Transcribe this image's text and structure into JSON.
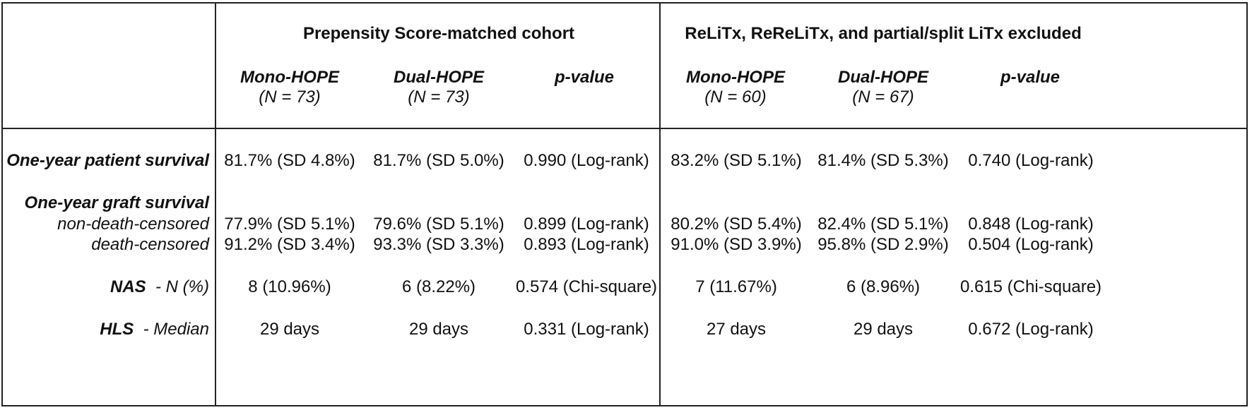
{
  "groups": {
    "psm": "Prepensity Score-matched cohort",
    "excl": "ReLiTx, ReReLiTx, and partial/split LiTx excluded"
  },
  "headers": {
    "psm": {
      "mono": {
        "label": "Mono-HOPE",
        "n": "(N = 73)"
      },
      "dual": {
        "label": "Dual-HOPE",
        "n": "(N = 73)"
      },
      "p": {
        "label": "p-value"
      }
    },
    "excl": {
      "mono": {
        "label": "Mono-HOPE",
        "n": "(N = 60)"
      },
      "dual": {
        "label": "Dual-HOPE",
        "n": "(N = 67)"
      },
      "p": {
        "label": "p-value"
      }
    }
  },
  "rows": {
    "patient_survival": {
      "label": "One-year patient survival",
      "psm_mono": "81.7% (SD 4.8%)",
      "psm_dual": "81.7% (SD 5.0%)",
      "psm_p": "0.990 (Log-rank)",
      "excl_mono": "83.2% (SD 5.1%)",
      "excl_dual": "81.4% (SD 5.3%)",
      "excl_p": "0.740 (Log-rank)"
    },
    "graft_survival": {
      "label": "One-year graft survival"
    },
    "non_death_censored": {
      "label": "non-death-censored",
      "psm_mono": "77.9% (SD 5.1%)",
      "psm_dual": "79.6% (SD 5.1%)",
      "psm_p": "0.899 (Log-rank)",
      "excl_mono": "80.2% (SD 5.4%)",
      "excl_dual": "82.4% (SD 5.1%)",
      "excl_p": "0.848 (Log-rank)"
    },
    "death_censored": {
      "label": "death-censored",
      "psm_mono": "91.2% (SD 3.4%)",
      "psm_dual": "93.3% (SD 3.3%)",
      "psm_p": "0.893 (Log-rank)",
      "excl_mono": "91.0% (SD 3.9%)",
      "excl_dual": "95.8% (SD 2.9%)",
      "excl_p": "0.504 (Log-rank)"
    },
    "nas": {
      "label": "NAS",
      "sub": "- N (%)",
      "psm_mono": "8 (10.96%)",
      "psm_dual": "6 (8.22%)",
      "psm_p": "0.574 (Chi-square)",
      "excl_mono": "7 (11.67%)",
      "excl_dual": "6 (8.96%)",
      "excl_p": "0.615 (Chi-square)"
    },
    "hls": {
      "label": "HLS",
      "sub": "- Median",
      "psm_mono": "29 days",
      "psm_dual": "29 days",
      "psm_p": "0.331 (Log-rank)",
      "excl_mono": "27 days",
      "excl_dual": "29 days",
      "excl_p": "0.672 (Log-rank)"
    }
  }
}
